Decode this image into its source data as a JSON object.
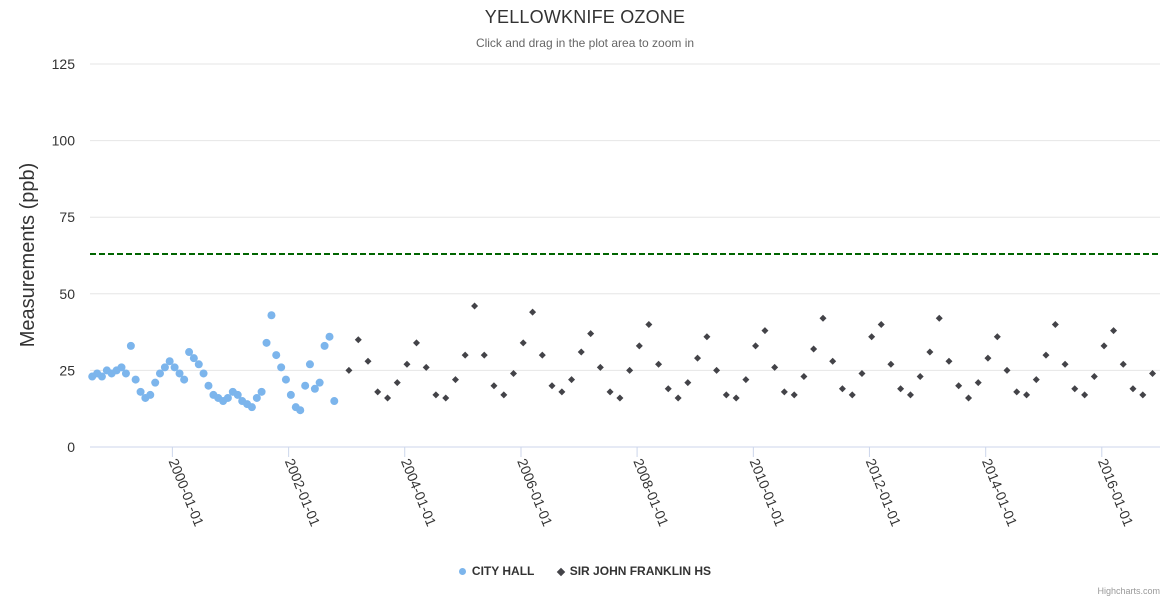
{
  "title": "YELLOWKNIFE OZONE",
  "subtitle": "Click and drag in the plot area to zoom in",
  "credits": "Highcharts.com",
  "colors": {
    "city_hall": "#7cb5ec",
    "sir_john": "#434348",
    "threshold": "#006400",
    "grid": "#e6e6e6",
    "axis": "#ccd6eb"
  },
  "chart_data": {
    "type": "scatter",
    "title": "YELLOWKNIFE OZONE",
    "subtitle": "Click and drag in the plot area to zoom in",
    "xlabel": "",
    "ylabel": "Measurements (ppb)",
    "xlim": [
      "1998-08-01",
      "2017-01-01"
    ],
    "ylim": [
      0,
      125
    ],
    "y_ticks": [
      "0",
      "25",
      "50",
      "75",
      "100",
      "125"
    ],
    "y_tick_values": [
      0,
      25,
      50,
      75,
      100,
      125
    ],
    "x_ticks": [
      "2000-01-01",
      "2002-01-01",
      "2004-01-01",
      "2006-01-01",
      "2008-01-01",
      "2010-01-01",
      "2012-01-01",
      "2014-01-01",
      "2016-01-01"
    ],
    "reference_line": {
      "value": 63,
      "style": "dashed",
      "color": "#006400"
    },
    "legend_position": "bottom-center",
    "series": [
      {
        "name": "CITY HALL",
        "marker": "circle",
        "x": [
          "1998-08-15",
          "1998-09-15",
          "1998-10-15",
          "1998-11-15",
          "1998-12-15",
          "1999-01-15",
          "1999-02-15",
          "1999-03-15",
          "1999-04-15",
          "1999-05-15",
          "1999-06-15",
          "1999-07-15",
          "1999-08-15",
          "1999-09-15",
          "1999-10-15",
          "1999-11-15",
          "1999-12-15",
          "2000-01-15",
          "2000-02-15",
          "2000-03-15",
          "2000-04-15",
          "2000-05-15",
          "2000-06-15",
          "2000-07-15",
          "2000-08-15",
          "2000-09-15",
          "2000-10-15",
          "2000-11-15",
          "2000-12-15",
          "2001-01-15",
          "2001-02-15",
          "2001-03-15",
          "2001-04-15",
          "2001-05-15",
          "2001-06-15",
          "2001-07-15",
          "2001-08-15",
          "2001-09-15",
          "2001-10-15",
          "2001-11-15",
          "2001-12-15",
          "2002-01-15",
          "2002-02-15",
          "2002-03-15",
          "2002-04-15",
          "2002-05-15",
          "2002-06-15",
          "2002-07-15",
          "2002-08-15",
          "2002-09-15",
          "2002-10-15"
        ],
        "values": [
          23,
          24,
          23,
          25,
          24,
          25,
          26,
          24,
          33,
          22,
          18,
          16,
          17,
          21,
          24,
          26,
          28,
          26,
          24,
          22,
          31,
          29,
          27,
          24,
          20,
          17,
          16,
          15,
          16,
          18,
          17,
          15,
          14,
          13,
          16,
          18,
          34,
          43,
          30,
          26,
          22,
          17,
          13,
          12,
          20,
          27,
          19,
          21,
          33,
          36,
          15
        ]
      },
      {
        "name": "SIR JOHN FRANKLIN HS",
        "marker": "diamond",
        "x": [
          "2003-01-15",
          "2003-03-15",
          "2003-05-15",
          "2003-07-15",
          "2003-09-15",
          "2003-11-15",
          "2004-01-15",
          "2004-03-15",
          "2004-05-15",
          "2004-07-15",
          "2004-09-15",
          "2004-11-15",
          "2005-01-15",
          "2005-03-15",
          "2005-05-15",
          "2005-07-15",
          "2005-09-15",
          "2005-11-15",
          "2006-01-15",
          "2006-03-15",
          "2006-05-15",
          "2006-07-15",
          "2006-09-15",
          "2006-11-15",
          "2007-01-15",
          "2007-03-15",
          "2007-05-15",
          "2007-07-15",
          "2007-09-15",
          "2007-11-15",
          "2008-01-15",
          "2008-03-15",
          "2008-05-15",
          "2008-07-15",
          "2008-09-15",
          "2008-11-15",
          "2009-01-15",
          "2009-03-15",
          "2009-05-15",
          "2009-07-15",
          "2009-09-15",
          "2009-11-15",
          "2010-01-15",
          "2010-03-15",
          "2010-05-15",
          "2010-07-15",
          "2010-09-15",
          "2010-11-15",
          "2011-01-15",
          "2011-03-15",
          "2011-05-15",
          "2011-07-15",
          "2011-09-15",
          "2011-11-15",
          "2012-01-15",
          "2012-03-15",
          "2012-05-15",
          "2012-07-15",
          "2012-09-15",
          "2012-11-15",
          "2013-01-15",
          "2013-03-15",
          "2013-05-15",
          "2013-07-15",
          "2013-09-15",
          "2013-11-15",
          "2014-01-15",
          "2014-03-15",
          "2014-05-15",
          "2014-07-15",
          "2014-09-15",
          "2014-11-15",
          "2015-01-15",
          "2015-03-15",
          "2015-05-15",
          "2015-07-15",
          "2015-09-15",
          "2015-11-15",
          "2016-01-15",
          "2016-03-15",
          "2016-05-15",
          "2016-07-15",
          "2016-09-15",
          "2016-11-15"
        ],
        "values": [
          25,
          35,
          28,
          18,
          16,
          21,
          27,
          34,
          26,
          17,
          16,
          22,
          30,
          46,
          30,
          20,
          17,
          24,
          34,
          44,
          30,
          20,
          18,
          22,
          31,
          37,
          26,
          18,
          16,
          25,
          33,
          40,
          27,
          19,
          16,
          21,
          29,
          36,
          25,
          17,
          16,
          22,
          33,
          38,
          26,
          18,
          17,
          23,
          32,
          42,
          28,
          19,
          17,
          24,
          36,
          40,
          27,
          19,
          17,
          23,
          31,
          42,
          28,
          20,
          16,
          21,
          29,
          36,
          25,
          18,
          17,
          22,
          30,
          40,
          27,
          19,
          17,
          23,
          33,
          38,
          27,
          19,
          17,
          24
        ]
      }
    ]
  }
}
